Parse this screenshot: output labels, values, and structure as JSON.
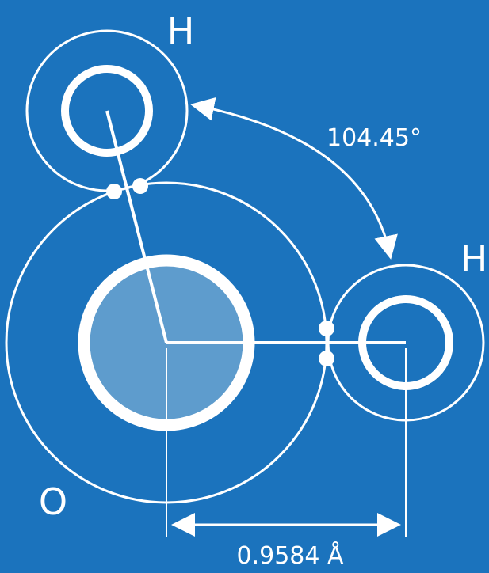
{
  "diagram": {
    "background_color": "#1b73bd",
    "stroke_color": "#ffffff",
    "nucleus_fill": "#5e9ccd",
    "atoms": [
      {
        "id": "h_top",
        "label": "H"
      },
      {
        "id": "h_right",
        "label": "H"
      },
      {
        "id": "oxygen",
        "label": "O"
      }
    ],
    "bond_angle": {
      "value": 104.45,
      "label": "104.45°"
    },
    "bond_length": {
      "value": 0.9584,
      "label": "0.9584 Å"
    }
  }
}
